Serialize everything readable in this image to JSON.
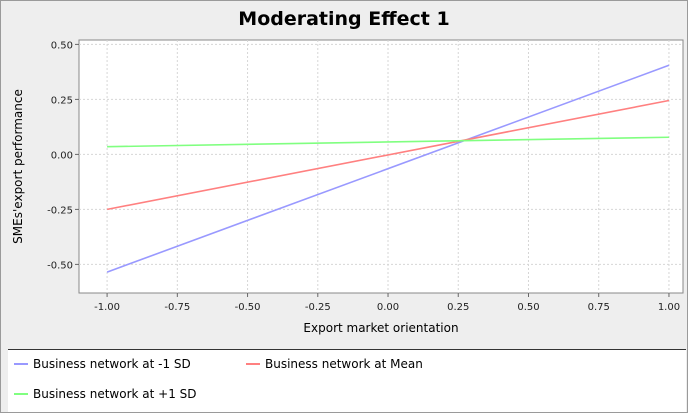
{
  "chart_data": {
    "type": "line",
    "title": "Moderating Effect 1",
    "xlabel": "Export market orientation",
    "ylabel": "SMEs'export performance",
    "xlim": [
      -1.1,
      1.05
    ],
    "ylim": [
      -0.63,
      0.52
    ],
    "xticks": [
      "-1.00",
      "-0.75",
      "-0.50",
      "-0.25",
      "0.00",
      "0.25",
      "0.50",
      "0.75",
      "1.00"
    ],
    "yticks": [
      "0.50",
      "0.25",
      "0.00",
      "-0.25",
      "-0.50"
    ],
    "grid": true,
    "legend_position": "bottom",
    "series": [
      {
        "name": "Business network at -1 SD",
        "color": "#9999ff",
        "x": [
          -1.0,
          1.0
        ],
        "y": [
          -0.535,
          0.405
        ]
      },
      {
        "name": "Business network at Mean",
        "color": "#ff8080",
        "x": [
          -1.0,
          1.0
        ],
        "y": [
          -0.25,
          0.245
        ]
      },
      {
        "name": "Business network at +1 SD",
        "color": "#80ff80",
        "x": [
          -1.0,
          1.0
        ],
        "y": [
          0.035,
          0.078
        ]
      }
    ]
  }
}
